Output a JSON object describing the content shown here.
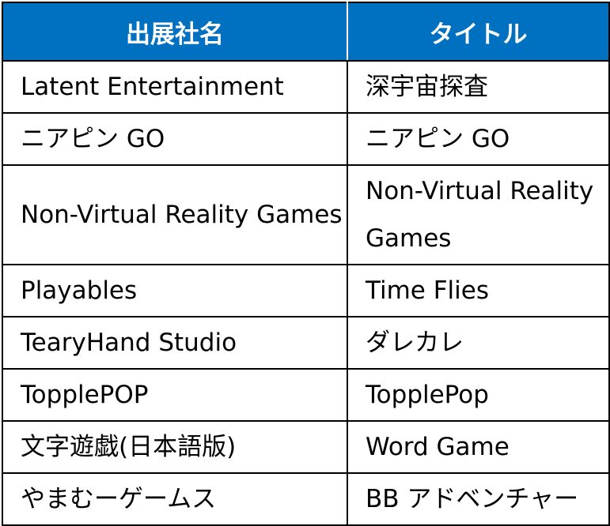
{
  "table": {
    "headers": [
      "出展社名",
      "タイトル"
    ],
    "rows": [
      {
        "exhibitor": "Latent Entertainment",
        "title": "深宇宙探査"
      },
      {
        "exhibitor": "ニアピン GO",
        "title": "ニアピン GO"
      },
      {
        "exhibitor": "Non-Virtual Reality Games",
        "title": "Non-Virtual Reality Games"
      },
      {
        "exhibitor": "Playables",
        "title": "Time Flies"
      },
      {
        "exhibitor": "TearyHand Studio",
        "title": "ダレカレ"
      },
      {
        "exhibitor": "TopplePOP",
        "title": "TopplePop"
      },
      {
        "exhibitor": "文字遊戯(日本語版)",
        "title": "Word Game"
      },
      {
        "exhibitor": "やまむーゲームス",
        "title": "BB アドベンチャー"
      }
    ],
    "colors": {
      "header_background": "#0070c0",
      "header_text": "#ffffff",
      "border": "#000000"
    }
  }
}
